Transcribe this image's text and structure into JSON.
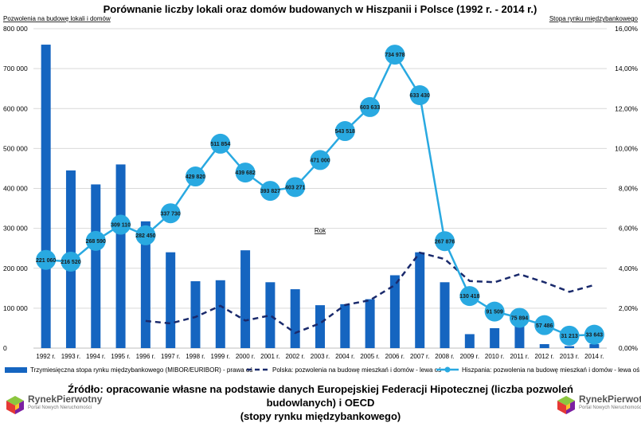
{
  "chart_data": {
    "type": "bar+line",
    "title": "Porównanie liczby lokali oraz domów budowanych w Hiszpanii i Polsce (1992 r. - 2014 r.)",
    "left_axis_label": "Pozwolenia na budowę lokali i domów",
    "right_axis_label": "Stopa rynku międzybankowego",
    "xlabel": "Rok",
    "categories": [
      "1992 r.",
      "1993 r.",
      "1994 r.",
      "1995 r.",
      "1996 r.",
      "1997 r.",
      "1998 r.",
      "1999 r.",
      "2000 r.",
      "2001 r.",
      "2002 r.",
      "2003 r.",
      "2004 r.",
      "2005 r.",
      "2006 r.",
      "2007 r.",
      "2008 r.",
      "2009 r.",
      "2010 r.",
      "2011 r.",
      "2012 r.",
      "2013 r.",
      "2014 r."
    ],
    "left_ylim": [
      0,
      800000
    ],
    "left_ticks": [
      "0",
      "100 000",
      "200 000",
      "300 000",
      "400 000",
      "500 000",
      "600 000",
      "700 000",
      "800 000"
    ],
    "right_ylim": [
      0,
      16
    ],
    "right_ticks": [
      "0,00%",
      "2,00%",
      "4,00%",
      "6,00%",
      "8,00%",
      "10,00%",
      "12,00%",
      "14,00%",
      "16,00%"
    ],
    "series": [
      {
        "name": "Trzymiesięczna stopa rynku międzybankowego (MIBOR/EURIBOR) - prawa oś",
        "kind": "bar",
        "axis": "right",
        "color": "#1565c0",
        "values": [
          15.2,
          8.9,
          8.2,
          9.2,
          6.35,
          4.8,
          3.35,
          3.4,
          4.9,
          3.3,
          2.95,
          2.15,
          2.2,
          2.45,
          3.65,
          4.8,
          3.3,
          0.7,
          1.0,
          1.35,
          0.2,
          0.1,
          0.2
        ]
      },
      {
        "name": "Polska: pozwolenia na budowę mieszkań i domów - lewa oś",
        "kind": "line-dashed",
        "axis": "left",
        "color": "#1a2a6c",
        "values": [
          null,
          null,
          null,
          null,
          68000,
          62000,
          78000,
          106000,
          69000,
          82000,
          38000,
          62000,
          108000,
          120000,
          158000,
          239000,
          223000,
          168000,
          165000,
          185000,
          165000,
          141000,
          158000
        ]
      },
      {
        "name": "Hiszpania: pozwolenia na budowę mieszkań i domów - lewa oś",
        "kind": "line-markers",
        "axis": "left",
        "color": "#29a9e1",
        "values": [
          221060,
          216520,
          268590,
          309110,
          282450,
          337730,
          429820,
          511854,
          439682,
          393827,
          403271,
          471000,
          543518,
          603633,
          734978,
          633430,
          267876,
          130418,
          91509,
          75894,
          57486,
          31213,
          33643
        ],
        "labels": [
          "221 060",
          "216 520",
          "268 590",
          "309 110",
          "282 450",
          "337 730",
          "429 820",
          "511 854",
          "439 682",
          "393 827",
          "403 271",
          "471 000",
          "543 518",
          "603 633",
          "734 978",
          "633 430",
          "267 876",
          "130 418",
          "91 509",
          "75 894",
          "57 486",
          "31 213",
          "33 643"
        ]
      }
    ]
  },
  "footer": {
    "line1": "Źródło: opracowanie własne na podstawie danych Europejskiej Federacji Hipotecznej (liczba pozwoleń budowlanych) i OECD",
    "line2": "(stopy rynku międzybankowego)"
  },
  "logo": {
    "name": "RynekPierwotny",
    "tagline": "Portal Nowych Nieruchomości"
  },
  "colors": {
    "bar": "#1565c0",
    "hiszpania": "#29a9e1",
    "polska": "#1a2a6c",
    "grid": "#d9d9d9"
  }
}
